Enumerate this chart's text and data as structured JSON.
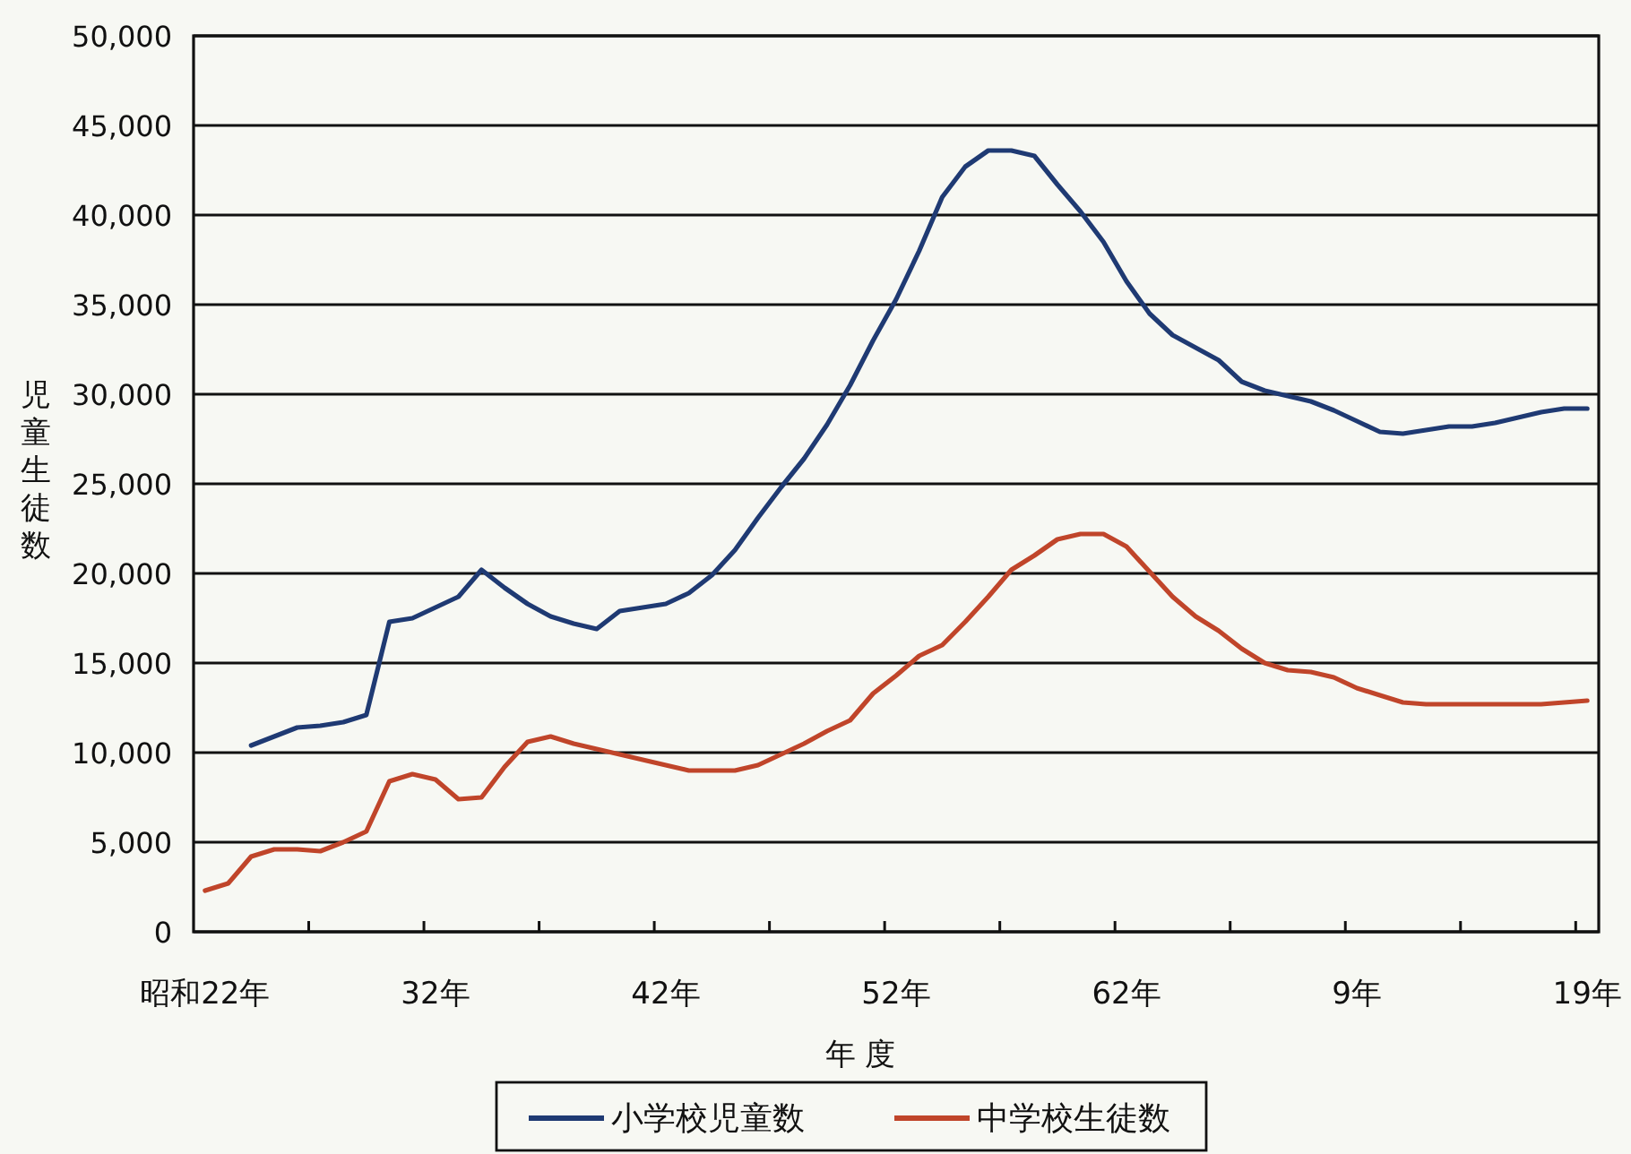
{
  "chart_data": {
    "type": "line",
    "xlabel": "年 度",
    "ylabel": "児童生徒数",
    "categories": [
      "昭和22年",
      null,
      null,
      null,
      null,
      null,
      null,
      null,
      null,
      null,
      "32年",
      null,
      null,
      null,
      null,
      null,
      null,
      null,
      null,
      null,
      "42年",
      null,
      null,
      null,
      null,
      null,
      null,
      null,
      null,
      null,
      "52年",
      null,
      null,
      null,
      null,
      null,
      null,
      null,
      null,
      null,
      "62年",
      null,
      null,
      null,
      null,
      null,
      null,
      null,
      null,
      null,
      "9年",
      null,
      null,
      null,
      null,
      null,
      null,
      null,
      null,
      null,
      "19年"
    ],
    "series": [
      {
        "name": "小学校児童数",
        "color": "#1f3a73",
        "values": [
          null,
          null,
          10400,
          10900,
          11400,
          11500,
          11700,
          12100,
          17300,
          17500,
          18100,
          18700,
          20200,
          19200,
          18300,
          17600,
          17200,
          16900,
          17900,
          18100,
          18300,
          18900,
          19900,
          21300,
          23100,
          24800,
          26400,
          28300,
          30500,
          33000,
          35300,
          38000,
          41000,
          42700,
          43600,
          43600,
          43300,
          41700,
          40200,
          38500,
          36300,
          34500,
          33300,
          32600,
          31900,
          30700,
          30200,
          29900,
          29600,
          29100,
          28500,
          27900,
          27800,
          28000,
          28200,
          28200,
          28400,
          28700,
          29000,
          29200,
          29200
        ]
      },
      {
        "name": "中学校生徒数",
        "color": "#c0452a",
        "values": [
          2300,
          2700,
          4200,
          4600,
          4600,
          4500,
          5000,
          5600,
          8400,
          8800,
          8500,
          7400,
          7500,
          9200,
          10600,
          10900,
          10500,
          10200,
          9900,
          9600,
          9300,
          9000,
          9000,
          9000,
          9300,
          9900,
          10500,
          11200,
          11800,
          13300,
          14300,
          15400,
          16000,
          17300,
          18700,
          20200,
          21000,
          21900,
          22200,
          22200,
          21500,
          20100,
          18700,
          17600,
          16800,
          15800,
          15000,
          14600,
          14500,
          14200,
          13600,
          13200,
          12800,
          12700,
          12700,
          12700,
          12700,
          12700,
          12700,
          12800,
          12900
        ]
      }
    ],
    "ylim": [
      0,
      50000
    ],
    "yticks": [
      {
        "value": 0,
        "label": "0"
      },
      {
        "value": 5000,
        "label": "5,000"
      },
      {
        "value": 10000,
        "label": "10,000"
      },
      {
        "value": 15000,
        "label": "15,000"
      },
      {
        "value": 20000,
        "label": "20,000"
      },
      {
        "value": 25000,
        "label": "25,000"
      },
      {
        "value": 30000,
        "label": "30,000"
      },
      {
        "value": 35000,
        "label": "35,000"
      },
      {
        "value": 40000,
        "label": "40,000"
      },
      {
        "value": 45000,
        "label": "45,000"
      },
      {
        "value": 50000,
        "label": "50,000"
      }
    ],
    "grid": "y",
    "legend": "bottom",
    "marker": "none",
    "line_style": "solid"
  }
}
